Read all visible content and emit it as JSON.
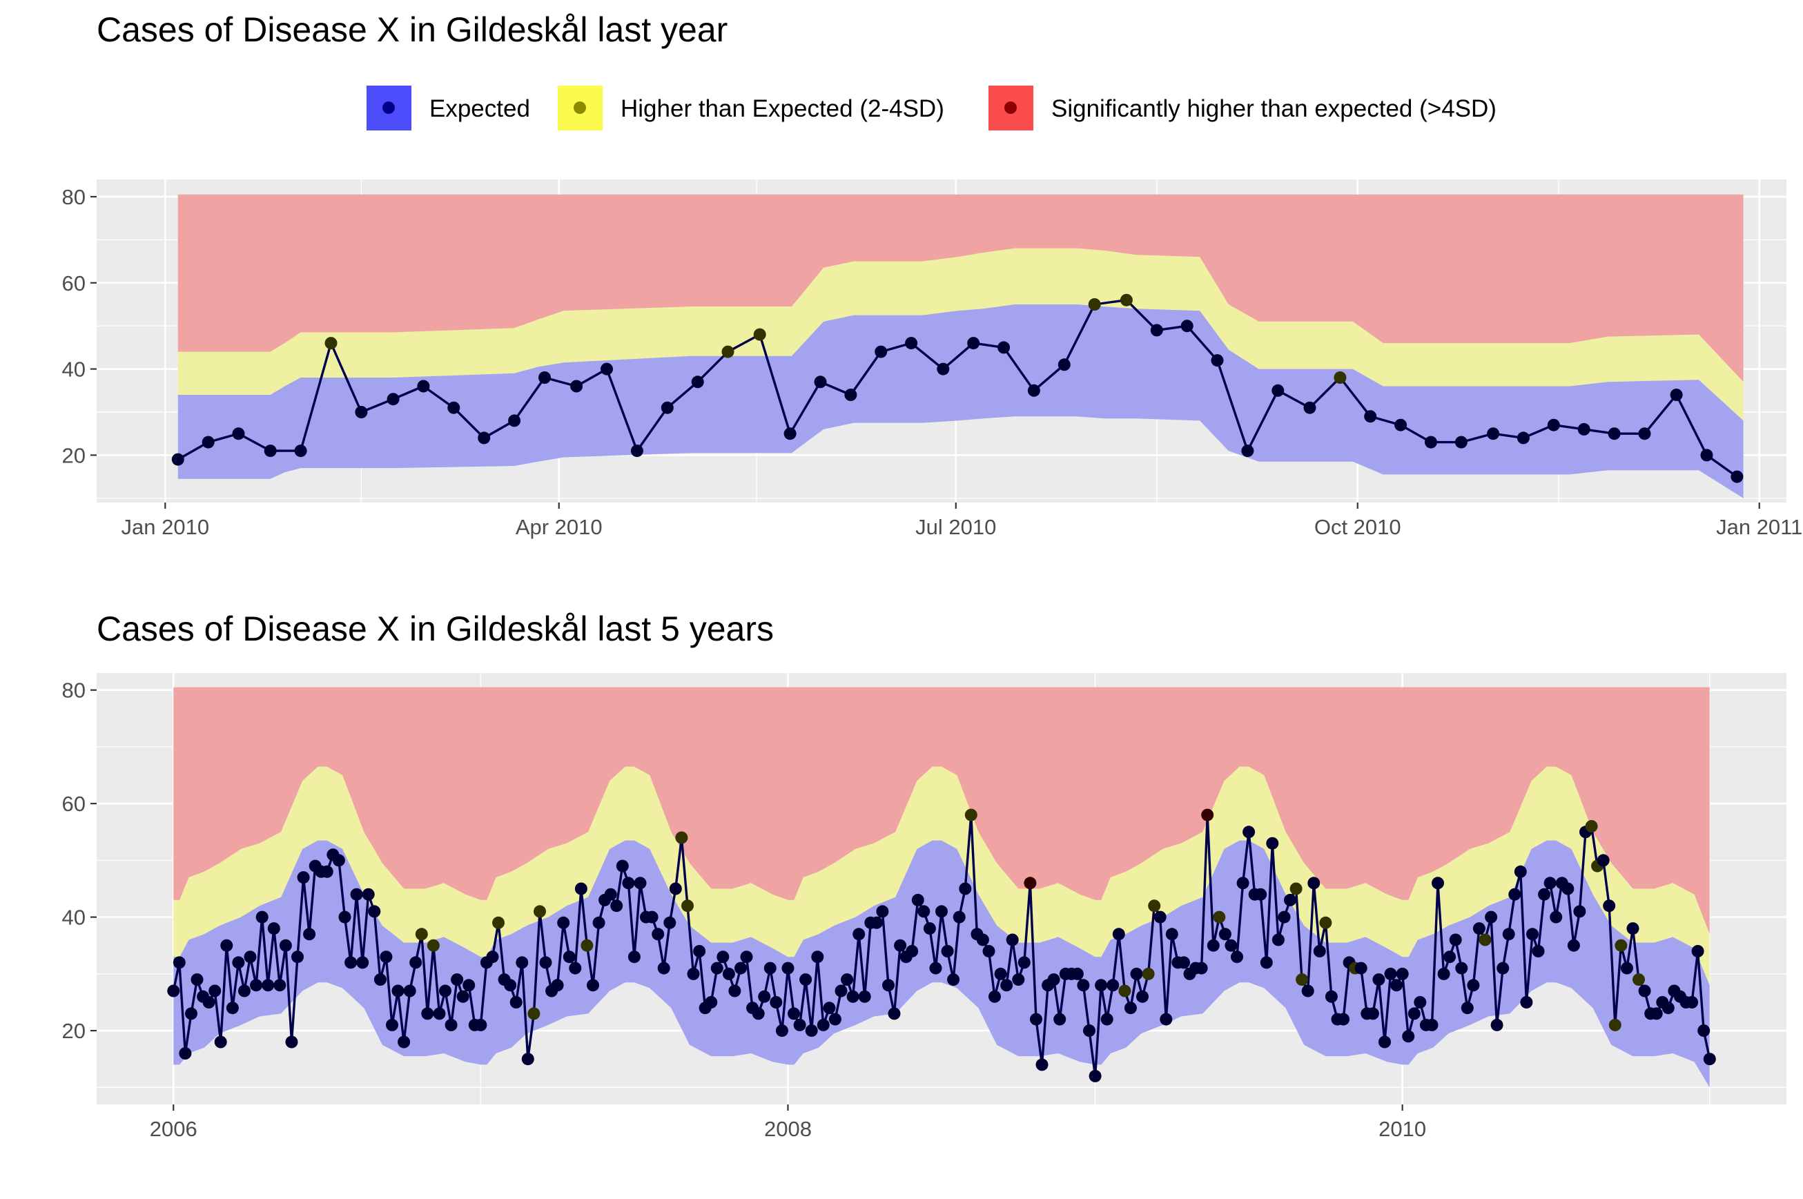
{
  "colors": {
    "panel_bg": "#ebebeb",
    "grid_major": "#ffffff",
    "band_expected": "#a3a3f0",
    "band_higher": "#f0f0a3",
    "band_significant": "#f0a3a3",
    "line": "#00004d",
    "point_expected": "#000033",
    "point_higher": "#333300",
    "point_significant": "#330000",
    "legend_expected": "#4d4dfb",
    "legend_higher": "#fbfb4d",
    "legend_significant": "#fb4d4d",
    "legend_dot_expected": "#00008b",
    "legend_dot_higher": "#8b8b00",
    "legend_dot_significant": "#8b0000"
  },
  "legend": {
    "items": [
      {
        "key": "expected",
        "label": "Expected"
      },
      {
        "key": "higher",
        "label": "Higher than Expected (2-4SD)"
      },
      {
        "key": "significant",
        "label": "Significantly higher than expected (>4SD)"
      }
    ]
  },
  "chart_data": [
    {
      "type": "area",
      "title": "Cases of Disease X in Gildeskål last year",
      "xlabel": "",
      "ylabel": "",
      "x_domain": [
        2009.957,
        2011.017
      ],
      "ylim": [
        9,
        84
      ],
      "y_ticks": [
        20,
        40,
        60,
        80
      ],
      "x_ticks": [
        {
          "label": "Jan 2010",
          "t": 2010.0
        },
        {
          "label": "Apr 2010",
          "t": 2010.247
        },
        {
          "label": "Jul 2010",
          "t": 2010.496
        },
        {
          "label": "Oct 2010",
          "t": 2010.748
        },
        {
          "label": "Jan 2011",
          "t": 2011.0
        }
      ],
      "x_minor_ticks": [
        2010.123,
        2010.371,
        2010.622,
        2010.874
      ],
      "grid": true,
      "legend_position": "top",
      "band_top": 80.5,
      "band_x": [
        2010.008,
        2010.066,
        2010.075,
        2010.085,
        2010.143,
        2010.219,
        2010.234,
        2010.25,
        2010.33,
        2010.393,
        2010.413,
        2010.432,
        2010.475,
        2010.497,
        2010.513,
        2010.533,
        2010.572,
        2010.589,
        2010.609,
        2010.649,
        2010.667,
        2010.686,
        2010.745,
        2010.764,
        2010.881,
        2010.905,
        2010.962,
        2010.99
      ],
      "band_lower": [
        14.5,
        14.5,
        16,
        17,
        17,
        17.5,
        18.5,
        19.5,
        20.5,
        20.5,
        26,
        27.5,
        27.5,
        28,
        28.5,
        29,
        29,
        28.5,
        28.5,
        28,
        21,
        18.5,
        18.5,
        15.5,
        15.5,
        16.5,
        16.5,
        10
      ],
      "band_mid": [
        34,
        34,
        36,
        38,
        38,
        39,
        40.5,
        41.5,
        43,
        43,
        51,
        52.5,
        52.5,
        53.5,
        54,
        55,
        55,
        54.5,
        54,
        53.5,
        44.5,
        40,
        40,
        36,
        36,
        37,
        37.5,
        28
      ],
      "band_upper": [
        44,
        44,
        46,
        48.5,
        48.5,
        49.5,
        51.5,
        53.5,
        54.5,
        54.5,
        63.5,
        65,
        65,
        66,
        67,
        68,
        68,
        67.5,
        66.5,
        66,
        55,
        51,
        51,
        46,
        46,
        47.5,
        48,
        37
      ],
      "point_x": [
        2010.008,
        2010.027,
        2010.046,
        2010.066,
        2010.085,
        2010.104,
        2010.123,
        2010.143,
        2010.162,
        2010.181,
        2010.2,
        2010.219,
        2010.238,
        2010.258,
        2010.277,
        2010.296,
        2010.315,
        2010.334,
        2010.353,
        2010.373,
        2010.392,
        2010.411,
        2010.43,
        2010.449,
        2010.468,
        2010.488,
        2010.507,
        2010.526,
        2010.545,
        2010.564,
        2010.583,
        2010.603,
        2010.622,
        2010.641,
        2010.66,
        2010.679,
        2010.698,
        2010.718,
        2010.737,
        2010.756,
        2010.775,
        2010.794,
        2010.813,
        2010.833,
        2010.852,
        2010.871,
        2010.89,
        2010.909,
        2010.928,
        2010.948,
        2010.967,
        2010.986
      ],
      "values": [
        19,
        23,
        25,
        21,
        21,
        46,
        30,
        33,
        36,
        31,
        24,
        28,
        38,
        36,
        40,
        21,
        31,
        37,
        44,
        48,
        25,
        37,
        34,
        44,
        46,
        40,
        46,
        45,
        35,
        41,
        55,
        56,
        49,
        50,
        42,
        21,
        35,
        31,
        38,
        29,
        27,
        23,
        23,
        25,
        24,
        27,
        26,
        25,
        25,
        34,
        20,
        15
      ],
      "status": [
        "e",
        "e",
        "e",
        "e",
        "e",
        "h",
        "e",
        "e",
        "e",
        "e",
        "e",
        "e",
        "e",
        "e",
        "e",
        "e",
        "e",
        "e",
        "h",
        "h",
        "e",
        "e",
        "e",
        "e",
        "e",
        "e",
        "e",
        "e",
        "e",
        "e",
        "h",
        "h",
        "e",
        "e",
        "e",
        "e",
        "e",
        "e",
        "h",
        "e",
        "e",
        "e",
        "e",
        "e",
        "e",
        "e",
        "e",
        "e",
        "e",
        "e",
        "e",
        "e"
      ]
    },
    {
      "type": "area",
      "title": "Cases of Disease X in Gildeskål last 5 years",
      "xlabel": "",
      "ylabel": "",
      "x_domain": [
        2005.75,
        2011.25
      ],
      "ylim": [
        7,
        83
      ],
      "y_ticks": [
        20,
        40,
        60,
        80
      ],
      "x_ticks": [
        {
          "label": "2006",
          "t": 2006
        },
        {
          "label": "2008",
          "t": 2008
        },
        {
          "label": "2010",
          "t": 2010
        }
      ],
      "x_minor_ticks": [
        2007,
        2009,
        2011
      ],
      "grid": true,
      "band_top": 80.5,
      "band_pattern": {
        "years": [
          2006,
          2007,
          2008,
          2009,
          2010
        ],
        "fx": [
          0,
          0.02,
          0.05,
          0.1,
          0.15,
          0.22,
          0.28,
          0.35,
          0.42,
          0.47,
          0.5,
          0.55,
          0.62,
          0.68,
          0.75,
          0.82,
          0.88,
          0.95,
          1.0
        ],
        "lower": [
          14,
          14,
          16,
          17,
          19.5,
          21,
          22.5,
          23,
          27,
          28.5,
          28.5,
          27.5,
          24,
          17.5,
          15.5,
          15.5,
          16,
          14.5,
          14
        ],
        "mid": [
          33,
          33,
          36,
          37,
          38.5,
          40,
          42,
          43.5,
          52,
          53.5,
          53.5,
          52,
          44,
          38.5,
          35.5,
          35.5,
          36.5,
          34.5,
          33
        ],
        "upper": [
          43,
          43,
          47,
          48,
          49.5,
          52,
          53,
          55,
          64,
          66.5,
          66.5,
          65,
          55,
          49.5,
          45,
          45,
          46,
          44,
          43
        ]
      },
      "band_end": {
        "t": 2011.0,
        "lower": 10,
        "mid": 28,
        "upper": 37
      },
      "point_x_start": 2006.0,
      "point_x_step": 0.019231,
      "values": [
        27,
        32,
        16,
        23,
        29,
        26,
        25,
        27,
        18,
        35,
        24,
        32,
        27,
        33,
        28,
        40,
        28,
        38,
        28,
        35,
        18,
        33,
        47,
        37,
        49,
        48,
        48,
        51,
        50,
        40,
        32,
        44,
        32,
        44,
        41,
        29,
        33,
        21,
        27,
        18,
        27,
        32,
        37,
        23,
        35,
        23,
        27,
        21,
        29,
        26,
        28,
        21,
        21,
        32,
        33,
        39,
        29,
        28,
        25,
        32,
        15,
        23,
        41,
        32,
        27,
        28,
        39,
        33,
        31,
        45,
        35,
        28,
        39,
        43,
        44,
        42,
        49,
        46,
        33,
        46,
        40,
        40,
        37,
        31,
        39,
        45,
        54,
        42,
        30,
        34,
        24,
        25,
        31,
        33,
        30,
        27,
        31,
        33,
        24,
        23,
        26,
        31,
        25,
        20,
        31,
        23,
        21,
        29,
        20,
        33,
        21,
        24,
        22,
        27,
        29,
        26,
        37,
        26,
        39,
        39,
        41,
        28,
        23,
        35,
        33,
        34,
        43,
        41,
        38,
        31,
        41,
        34,
        29,
        40,
        45,
        58,
        37,
        36,
        34,
        26,
        30,
        28,
        36,
        29,
        32,
        46,
        22,
        14,
        28,
        29,
        22,
        30,
        30,
        30,
        28,
        20,
        12,
        28,
        22,
        28,
        37,
        27,
        24,
        30,
        26,
        30,
        42,
        40,
        22,
        37,
        32,
        32,
        30,
        31,
        31,
        58,
        35,
        40,
        37,
        35,
        33,
        46,
        55,
        44,
        44,
        32,
        53,
        36,
        40,
        43,
        45,
        29,
        27,
        46,
        34,
        39,
        26,
        22,
        22,
        32,
        31,
        31,
        23,
        23,
        29,
        18,
        30,
        28,
        30,
        19,
        23,
        25,
        21,
        21,
        46,
        30,
        33,
        36,
        31,
        24,
        28,
        38,
        36,
        40,
        21,
        31,
        37,
        44,
        48,
        25,
        37,
        34,
        44,
        46,
        40,
        46,
        45,
        35,
        41,
        55,
        56,
        49,
        50,
        42,
        21,
        35,
        31,
        38,
        29,
        27,
        23,
        23,
        25,
        24,
        27,
        26,
        25,
        25,
        34,
        20,
        15
      ],
      "status_flags": {
        "higher": [
          42,
          44,
          55,
          61,
          62,
          70,
          86,
          87,
          135,
          161,
          165,
          166,
          177,
          190,
          191,
          195,
          200,
          222,
          240,
          241,
          244,
          245,
          248
        ],
        "significant": [
          145,
          175
        ]
      }
    }
  ]
}
